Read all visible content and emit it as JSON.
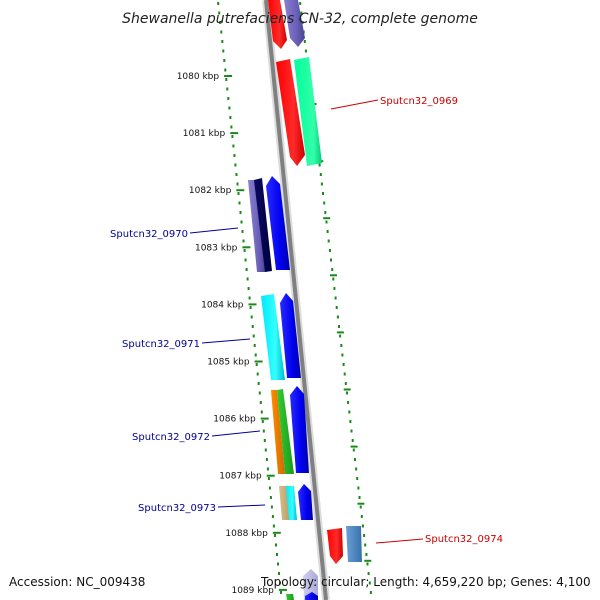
{
  "title": "Shewanella putrefaciens CN-32, complete genome",
  "footer": {
    "accession": "Accession: NC_009438",
    "topology": "Topology: circular; Length: 4,659,220 bp; Genes: 4,100"
  },
  "colors": {
    "backbone": "#808080",
    "tick": "#1a8a1a",
    "label_red": "#cc0000",
    "label_blue": "#000099"
  },
  "ruler": {
    "unit": "kbp",
    "ticks": [
      "1080 kbp",
      "1081 kbp",
      "1082 kbp",
      "1083 kbp",
      "1084 kbp",
      "1085 kbp",
      "1086 kbp",
      "1087 kbp",
      "1088 kbp",
      "1089 kbp"
    ]
  },
  "gene_labels": [
    {
      "text": "Sputcn32_0969",
      "color": "#cc0000"
    },
    {
      "text": "Sputcn32_0970",
      "color": "#000099"
    },
    {
      "text": "Sputcn32_0971",
      "color": "#000099"
    },
    {
      "text": "Sputcn32_0972",
      "color": "#000099"
    },
    {
      "text": "Sputcn32_0973",
      "color": "#000099"
    },
    {
      "text": "Sputcn32_0974",
      "color": "#cc0000"
    }
  ]
}
